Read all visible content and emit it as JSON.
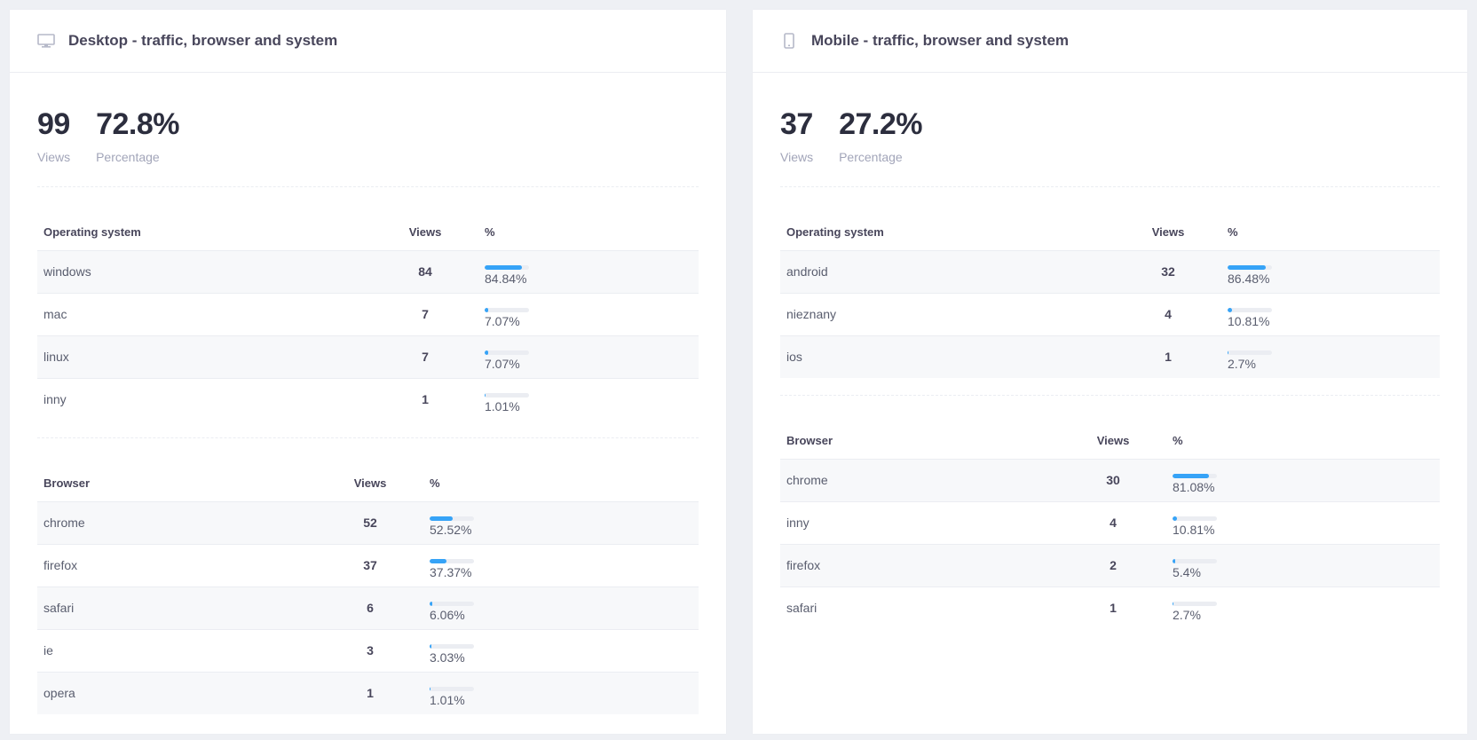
{
  "colors": {
    "accent": "#36a3f7",
    "track": "#ebedf2"
  },
  "desktop": {
    "title": "Desktop - traffic, browser and system",
    "icon": "monitor-icon",
    "views": "99",
    "views_label": "Views",
    "percentage": "72.8%",
    "percentage_label": "Percentage",
    "os": {
      "headers": [
        "Operating system",
        "Views",
        "%"
      ],
      "rows": [
        {
          "name": "windows",
          "views": "84",
          "pct": "84.84%",
          "fill": 84.84
        },
        {
          "name": "mac",
          "views": "7",
          "pct": "7.07%",
          "fill": 7.07
        },
        {
          "name": "linux",
          "views": "7",
          "pct": "7.07%",
          "fill": 7.07
        },
        {
          "name": "inny",
          "views": "1",
          "pct": "1.01%",
          "fill": 1.01
        }
      ]
    },
    "browser": {
      "headers": [
        "Browser",
        "Views",
        "%"
      ],
      "rows": [
        {
          "name": "chrome",
          "views": "52",
          "pct": "52.52%",
          "fill": 52.52
        },
        {
          "name": "firefox",
          "views": "37",
          "pct": "37.37%",
          "fill": 37.37
        },
        {
          "name": "safari",
          "views": "6",
          "pct": "6.06%",
          "fill": 6.06
        },
        {
          "name": "ie",
          "views": "3",
          "pct": "3.03%",
          "fill": 3.03
        },
        {
          "name": "opera",
          "views": "1",
          "pct": "1.01%",
          "fill": 1.01
        }
      ]
    }
  },
  "mobile": {
    "title": "Mobile - traffic, browser and system",
    "icon": "smartphone-icon",
    "views": "37",
    "views_label": "Views",
    "percentage": "27.2%",
    "percentage_label": "Percentage",
    "os": {
      "headers": [
        "Operating system",
        "Views",
        "%"
      ],
      "rows": [
        {
          "name": "android",
          "views": "32",
          "pct": "86.48%",
          "fill": 86.48
        },
        {
          "name": "nieznany",
          "views": "4",
          "pct": "10.81%",
          "fill": 10.81
        },
        {
          "name": "ios",
          "views": "1",
          "pct": "2.7%",
          "fill": 2.7
        }
      ]
    },
    "browser": {
      "headers": [
        "Browser",
        "Views",
        "%"
      ],
      "rows": [
        {
          "name": "chrome",
          "views": "30",
          "pct": "81.08%",
          "fill": 81.08
        },
        {
          "name": "inny",
          "views": "4",
          "pct": "10.81%",
          "fill": 10.81
        },
        {
          "name": "firefox",
          "views": "2",
          "pct": "5.4%",
          "fill": 5.4
        },
        {
          "name": "safari",
          "views": "1",
          "pct": "2.7%",
          "fill": 2.7
        }
      ]
    }
  }
}
